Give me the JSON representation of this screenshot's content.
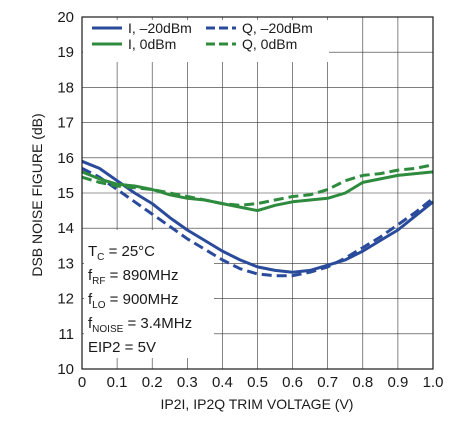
{
  "chart_data": {
    "type": "line",
    "xlabel": "IP2I, IP2Q TRIM VOLTAGE (V)",
    "ylabel": "DSB NOISE FIGURE (dB)",
    "xlim": [
      0,
      1.0
    ],
    "ylim": [
      10,
      20
    ],
    "x_ticks": [
      "0",
      "0.1",
      "0.2",
      "0.3",
      "0.4",
      "0.5",
      "0.6",
      "0.7",
      "0.8",
      "0.9",
      "1.0"
    ],
    "y_ticks": [
      "10",
      "11",
      "12",
      "13",
      "14",
      "15",
      "16",
      "17",
      "18",
      "19",
      "20"
    ],
    "grid": true,
    "legend_position": "top",
    "series": [
      {
        "name": "I, –20dBm",
        "color": "#2a4b9b",
        "dash": "solid",
        "points": [
          [
            0,
            15.9
          ],
          [
            0.05,
            15.7
          ],
          [
            0.1,
            15.35
          ],
          [
            0.15,
            15.0
          ],
          [
            0.2,
            14.7
          ],
          [
            0.25,
            14.3
          ],
          [
            0.3,
            13.95
          ],
          [
            0.35,
            13.65
          ],
          [
            0.4,
            13.35
          ],
          [
            0.45,
            13.1
          ],
          [
            0.5,
            12.9
          ],
          [
            0.55,
            12.8
          ],
          [
            0.6,
            12.75
          ],
          [
            0.65,
            12.8
          ],
          [
            0.7,
            12.95
          ],
          [
            0.75,
            13.1
          ],
          [
            0.8,
            13.35
          ],
          [
            0.85,
            13.65
          ],
          [
            0.9,
            13.95
          ],
          [
            0.95,
            14.35
          ],
          [
            1.0,
            14.75
          ]
        ]
      },
      {
        "name": "Q, –20dBm",
        "color": "#2a4b9b",
        "dash": "dashed",
        "points": [
          [
            0,
            15.7
          ],
          [
            0.05,
            15.45
          ],
          [
            0.1,
            15.1
          ],
          [
            0.15,
            14.75
          ],
          [
            0.2,
            14.4
          ],
          [
            0.25,
            14.05
          ],
          [
            0.3,
            13.7
          ],
          [
            0.35,
            13.4
          ],
          [
            0.4,
            13.1
          ],
          [
            0.45,
            12.85
          ],
          [
            0.5,
            12.7
          ],
          [
            0.55,
            12.65
          ],
          [
            0.6,
            12.65
          ],
          [
            0.65,
            12.75
          ],
          [
            0.7,
            12.9
          ],
          [
            0.75,
            13.15
          ],
          [
            0.8,
            13.45
          ],
          [
            0.85,
            13.75
          ],
          [
            0.9,
            14.1
          ],
          [
            0.95,
            14.45
          ],
          [
            1.0,
            14.85
          ]
        ]
      },
      {
        "name": "I, 0dBm",
        "color": "#2e8b3e",
        "dash": "solid",
        "points": [
          [
            0,
            15.6
          ],
          [
            0.05,
            15.4
          ],
          [
            0.1,
            15.25
          ],
          [
            0.15,
            15.2
          ],
          [
            0.2,
            15.1
          ],
          [
            0.25,
            14.95
          ],
          [
            0.3,
            14.85
          ],
          [
            0.35,
            14.8
          ],
          [
            0.4,
            14.7
          ],
          [
            0.45,
            14.6
          ],
          [
            0.5,
            14.5
          ],
          [
            0.55,
            14.65
          ],
          [
            0.6,
            14.75
          ],
          [
            0.65,
            14.8
          ],
          [
            0.7,
            14.85
          ],
          [
            0.75,
            15.0
          ],
          [
            0.8,
            15.3
          ],
          [
            0.85,
            15.4
          ],
          [
            0.9,
            15.5
          ],
          [
            0.95,
            15.55
          ],
          [
            1.0,
            15.6
          ]
        ]
      },
      {
        "name": "Q, 0dBm",
        "color": "#2e8b3e",
        "dash": "dashed",
        "points": [
          [
            0,
            15.45
          ],
          [
            0.05,
            15.3
          ],
          [
            0.1,
            15.2
          ],
          [
            0.15,
            15.15
          ],
          [
            0.2,
            15.1
          ],
          [
            0.25,
            15.0
          ],
          [
            0.3,
            14.9
          ],
          [
            0.35,
            14.8
          ],
          [
            0.4,
            14.7
          ],
          [
            0.45,
            14.65
          ],
          [
            0.5,
            14.7
          ],
          [
            0.55,
            14.8
          ],
          [
            0.6,
            14.9
          ],
          [
            0.65,
            14.95
          ],
          [
            0.7,
            15.1
          ],
          [
            0.75,
            15.35
          ],
          [
            0.8,
            15.5
          ],
          [
            0.85,
            15.55
          ],
          [
            0.9,
            15.65
          ],
          [
            0.95,
            15.7
          ],
          [
            1.0,
            15.8
          ]
        ]
      }
    ],
    "conditions": [
      {
        "main": "T",
        "sub": "C",
        "rest": " = 25°C"
      },
      {
        "main": "f",
        "sub": "RF",
        "rest": " = 890MHz"
      },
      {
        "main": "f",
        "sub": "LO",
        "rest": " = 900MHz"
      },
      {
        "main": "f",
        "sub": "NOISE",
        "rest": " = 3.4MHz"
      },
      {
        "main": "EIP2 = 5V",
        "sub": "",
        "rest": ""
      }
    ]
  }
}
